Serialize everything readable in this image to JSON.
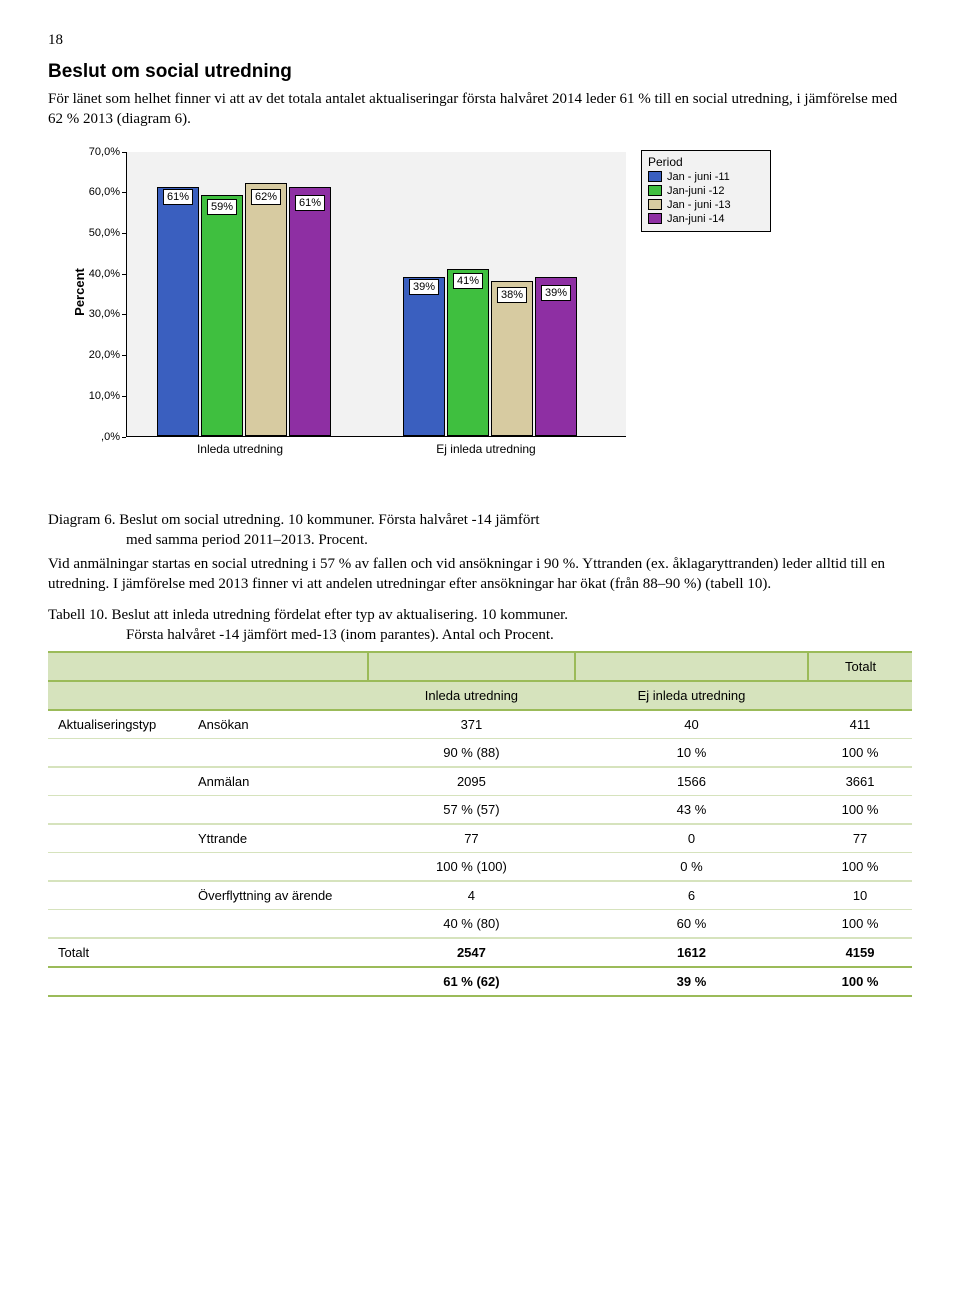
{
  "page_number": "18",
  "heading": "Beslut om social utredning",
  "intro": "För länet som helhet finner vi att av det totala antalet aktualiseringar första halvåret 2014 leder 61 % till en social utredning, i jämförelse med 62 % 2013 (diagram 6).",
  "diagram_caption_a": "Diagram 6. Beslut om social utredning. 10 kommuner. Första halvåret -14 jämfört",
  "diagram_caption_b": "med samma period 2011–2013. Procent.",
  "para2": "Vid anmälningar startas en social utredning i 57 % av fallen och vid ansökningar i 90 %. Yttranden (ex. åklagaryttranden) leder alltid till en utredning. I jämförelse med 2013 finner vi att andelen utredningar efter ansökningar har ökat (från 88–90 %) (tabell 10).",
  "tabell_caption_a": "Tabell 10.  Beslut att inleda utredning fördelat efter typ av aktualisering. 10 kommuner.",
  "tabell_caption_b": "Första halvåret -14 jämfört med-13 (inom parantes). Antal och Procent.",
  "chart": {
    "type": "bar",
    "ylabel": "Percent",
    "yticks": [
      ",0%",
      "10,0%",
      "20,0%",
      "30,0%",
      "40,0%",
      "50,0%",
      "60,0%",
      "70,0%"
    ],
    "xcats": [
      "Inleda utredning",
      "Ej inleda utredning"
    ],
    "legend_title": "Period",
    "legend_items": [
      {
        "label": "Jan - juni -11",
        "color": "#3a5fbf"
      },
      {
        "label": "Jan-juni -12",
        "color": "#3fbf3f"
      },
      {
        "label": "Jan - juni -13",
        "color": "#d7cba1"
      },
      {
        "label": "Jan-juni -14",
        "color": "#8e2fa3"
      }
    ],
    "groups": [
      {
        "values": [
          61,
          59,
          62,
          61
        ],
        "labels": [
          "61%",
          "59%",
          "62%",
          "61%"
        ]
      },
      {
        "values": [
          39,
          41,
          38,
          39
        ],
        "labels": [
          "39%",
          "41%",
          "38%",
          "39%"
        ]
      }
    ],
    "background_color": "#f2f2f2",
    "ymax": 70
  },
  "table": {
    "col_inleda": "Inleda utredning",
    "col_ej": "Ej inleda utredning",
    "col_tot": "Totalt",
    "rowgroup_label": "Aktualiseringstyp",
    "total_label": "Totalt",
    "rows": [
      {
        "label": "Ansökan",
        "vals": [
          "371",
          "40",
          "411"
        ],
        "pcts": [
          "90 % (88)",
          "10 %",
          "100 %"
        ]
      },
      {
        "label": "Anmälan",
        "vals": [
          "2095",
          "1566",
          "3661"
        ],
        "pcts": [
          "57 % (57)",
          "43 %",
          "100 %"
        ]
      },
      {
        "label": "Yttrande",
        "vals": [
          "77",
          "0",
          "77"
        ],
        "pcts": [
          "100 % (100)",
          "0 %",
          "100 %"
        ]
      },
      {
        "label": "Överflyttning av ärende",
        "vals": [
          "4",
          "6",
          "10"
        ],
        "pcts": [
          "40 % (80)",
          "60 %",
          "100 %"
        ]
      }
    ],
    "totals": {
      "vals": [
        "2547",
        "1612",
        "4159"
      ],
      "pcts": [
        "61 % (62)",
        "39 %",
        "100 %"
      ]
    }
  }
}
